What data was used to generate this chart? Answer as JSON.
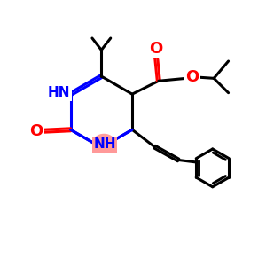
{
  "bg_color": "#ffffff",
  "bond_color": "#000000",
  "blue": "#0000ff",
  "red": "#ff0000",
  "highlight": "#ff9999",
  "lw": 2.2,
  "figsize": [
    3.0,
    3.0
  ],
  "dpi": 100,
  "xlim": [
    0,
    10
  ],
  "ylim": [
    0,
    10
  ]
}
